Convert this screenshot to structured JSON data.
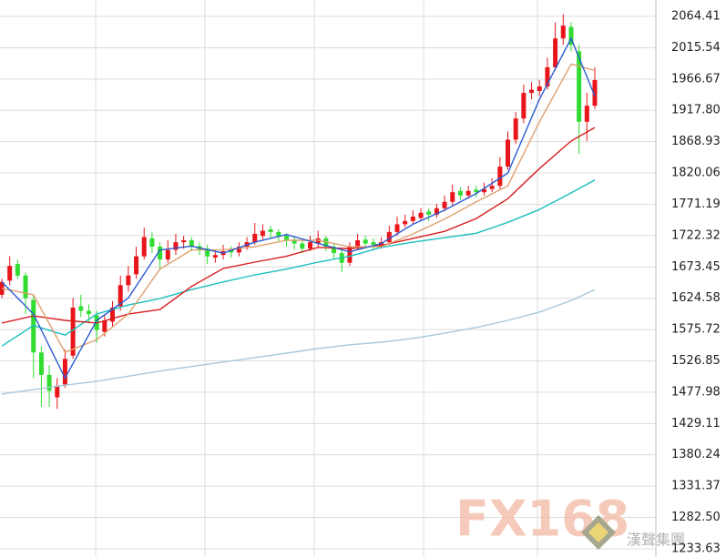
{
  "chart_data": {
    "type": "candlestick",
    "ylim": [
      1220.81,
      2089.97
    ],
    "xlim": [
      -0.23,
      82.72
    ],
    "yticks": [
      2064.41,
      2015.54,
      1966.67,
      {
        "value": 1917.8,
        "label": "1917.80"
      },
      1868.93,
      1820.06,
      1771.19,
      1722.32,
      1673.45,
      1624.58,
      1575.72,
      1526.85,
      1477.98,
      1429.11,
      1380.24,
      1331.37,
      {
        "value": 1282.5,
        "label": "1282.50"
      },
      1233.63
    ],
    "grid": true,
    "up_color": "#e8151b",
    "down_color": "#2fdc2f",
    "ohlc": [
      [
        1630,
        1655,
        1625,
        1650
      ],
      [
        1652,
        1690,
        1645,
        1675
      ],
      [
        1678,
        1685,
        1655,
        1660
      ],
      [
        1660,
        1665,
        1600,
        1625
      ],
      [
        1622,
        1630,
        1500,
        1540
      ],
      [
        1540,
        1550,
        1455,
        1505
      ],
      [
        1505,
        1520,
        1455,
        1480
      ],
      [
        1470,
        1500,
        1452,
        1488
      ],
      [
        1490,
        1545,
        1485,
        1530
      ],
      [
        1535,
        1625,
        1530,
        1610
      ],
      [
        1612,
        1630,
        1595,
        1605
      ],
      [
        1605,
        1615,
        1585,
        1600
      ],
      [
        1598,
        1605,
        1555,
        1575
      ],
      [
        1572,
        1600,
        1565,
        1590
      ],
      [
        1588,
        1620,
        1580,
        1610
      ],
      [
        1612,
        1660,
        1605,
        1645
      ],
      [
        1645,
        1675,
        1635,
        1660
      ],
      [
        1662,
        1705,
        1655,
        1690
      ],
      [
        1690,
        1735,
        1685,
        1720
      ],
      [
        1718,
        1728,
        1695,
        1705
      ],
      [
        1705,
        1712,
        1670,
        1685
      ],
      [
        1685,
        1715,
        1680,
        1700
      ],
      [
        1700,
        1725,
        1692,
        1712
      ],
      [
        1712,
        1722,
        1702,
        1715
      ],
      [
        1715,
        1720,
        1698,
        1706
      ],
      [
        1706,
        1712,
        1692,
        1700
      ],
      [
        1702,
        1708,
        1678,
        1690
      ],
      [
        1688,
        1700,
        1680,
        1692
      ],
      [
        1692,
        1708,
        1685,
        1698
      ],
      [
        1700,
        1706,
        1688,
        1696
      ],
      [
        1696,
        1712,
        1690,
        1705
      ],
      [
        1705,
        1720,
        1700,
        1712
      ],
      [
        1712,
        1742,
        1708,
        1725
      ],
      [
        1722,
        1740,
        1715,
        1730
      ],
      [
        1732,
        1738,
        1718,
        1728
      ],
      [
        1728,
        1732,
        1712,
        1722
      ],
      [
        1722,
        1726,
        1705,
        1715
      ],
      [
        1716,
        1722,
        1700,
        1710
      ],
      [
        1710,
        1715,
        1695,
        1702
      ],
      [
        1702,
        1722,
        1698,
        1712
      ],
      [
        1710,
        1730,
        1705,
        1718
      ],
      [
        1718,
        1722,
        1698,
        1705
      ],
      [
        1705,
        1710,
        1685,
        1695
      ],
      [
        1695,
        1700,
        1665,
        1680
      ],
      [
        1680,
        1712,
        1675,
        1705
      ],
      [
        1705,
        1725,
        1700,
        1715
      ],
      [
        1716,
        1722,
        1702,
        1710
      ],
      [
        1712,
        1718,
        1700,
        1708
      ],
      [
        1706,
        1720,
        1702,
        1712
      ],
      [
        1712,
        1738,
        1708,
        1728
      ],
      [
        1728,
        1752,
        1722,
        1740
      ],
      [
        1740,
        1755,
        1735,
        1745
      ],
      [
        1745,
        1762,
        1740,
        1752
      ],
      [
        1750,
        1765,
        1745,
        1758
      ],
      [
        1760,
        1765,
        1745,
        1755
      ],
      [
        1755,
        1772,
        1750,
        1765
      ],
      [
        1765,
        1785,
        1760,
        1775
      ],
      [
        1775,
        1802,
        1770,
        1790
      ],
      [
        1792,
        1798,
        1778,
        1785
      ],
      [
        1785,
        1800,
        1780,
        1792
      ],
      [
        1794,
        1800,
        1782,
        1790
      ],
      [
        1790,
        1805,
        1785,
        1795
      ],
      [
        1795,
        1812,
        1790,
        1800
      ],
      [
        1800,
        1845,
        1795,
        1830
      ],
      [
        1830,
        1885,
        1825,
        1872
      ],
      [
        1872,
        1915,
        1865,
        1905
      ],
      [
        1905,
        1958,
        1898,
        1945
      ],
      [
        1945,
        1962,
        1935,
        1950
      ],
      [
        1948,
        1965,
        1940,
        1955
      ],
      [
        1955,
        2000,
        1950,
        1985
      ],
      [
        1985,
        2055,
        1980,
        2030
      ],
      [
        2030,
        2068,
        2020,
        2050
      ],
      [
        2048,
        2055,
        2010,
        2020
      ],
      [
        2010,
        2020,
        1850,
        1900
      ],
      [
        1900,
        1945,
        1870,
        1925
      ],
      [
        1925,
        1985,
        1920,
        1965
      ]
    ],
    "lines": [
      {
        "color": "#a8c8dc",
        "x": [
          0,
          4,
          8,
          12,
          16,
          20,
          24,
          28,
          32,
          36,
          40,
          44,
          48,
          52,
          56,
          60,
          64,
          68,
          72,
          75
        ],
        "values": [
          1475,
          1482,
          1489,
          1495,
          1503,
          1511,
          1518,
          1525,
          1532,
          1539,
          1546,
          1552,
          1556,
          1562,
          1570,
          1579,
          1590,
          1603,
          1621,
          1638
        ]
      },
      {
        "color": "#1cbfbf",
        "x": [
          0,
          4,
          8,
          12,
          16,
          20,
          24,
          28,
          32,
          36,
          40,
          44,
          48,
          52,
          56,
          60,
          64,
          68,
          72,
          75
        ],
        "values": [
          1550,
          1582,
          1567,
          1600,
          1614,
          1624,
          1638,
          1650,
          1661,
          1670,
          1681,
          1690,
          1704,
          1712,
          1719,
          1726,
          1743,
          1763,
          1789,
          1809
        ]
      },
      {
        "color": "#d81e1e",
        "x": [
          0,
          4,
          8,
          12,
          16,
          20,
          24,
          28,
          32,
          36,
          40,
          44,
          48,
          52,
          56,
          60,
          64,
          68,
          72,
          75
        ],
        "values": [
          1586,
          1597,
          1590,
          1586,
          1600,
          1607,
          1643,
          1671,
          1681,
          1690,
          1704,
          1702,
          1707,
          1718,
          1729,
          1749,
          1780,
          1827,
          1870,
          1891
        ]
      },
      {
        "color": "#e0a070",
        "x": [
          0,
          4,
          8,
          12,
          16,
          20,
          24,
          28,
          32,
          36,
          40,
          44,
          48,
          52,
          56,
          60,
          64,
          68,
          72,
          75
        ],
        "values": [
          1640,
          1630,
          1540,
          1560,
          1600,
          1670,
          1700,
          1700,
          1705,
          1715,
          1715,
          1705,
          1705,
          1725,
          1748,
          1775,
          1800,
          1900,
          1990,
          1980
        ]
      },
      {
        "color": "#2a5cd0",
        "x": [
          0,
          4,
          8,
          12,
          16,
          20,
          24,
          28,
          32,
          36,
          40,
          44,
          48,
          52,
          56,
          60,
          64,
          68,
          72,
          75
        ],
        "values": [
          1650,
          1600,
          1500,
          1590,
          1625,
          1700,
          1706,
          1695,
          1712,
          1724,
          1710,
          1697,
          1710,
          1740,
          1762,
          1788,
          1820,
          1935,
          2030,
          1940
        ]
      }
    ],
    "watermark": {
      "text": "FX168",
      "subtext": "漢聲集團"
    }
  }
}
